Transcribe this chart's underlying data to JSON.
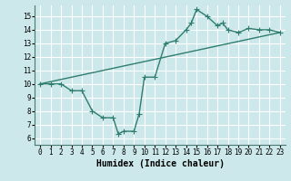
{
  "line1_x": [
    0,
    1,
    2,
    3,
    4,
    5,
    6,
    7,
    7.5,
    8,
    9,
    9.5,
    10,
    11,
    12,
    13,
    14,
    14.5,
    15,
    16,
    17,
    17.5,
    18,
    19,
    20,
    21,
    22,
    23
  ],
  "line1_y": [
    10,
    10,
    10,
    9.5,
    9.5,
    8,
    7.5,
    7.5,
    6.3,
    6.5,
    6.5,
    7.8,
    10.5,
    10.5,
    13,
    13.2,
    14,
    14.5,
    15.5,
    15,
    14.3,
    14.5,
    14,
    13.8,
    14.1,
    14,
    14,
    13.8
  ],
  "line2_x": [
    0,
    23
  ],
  "line2_y": [
    10,
    13.8
  ],
  "color": "#2e7d6e",
  "bg_color": "#cce8ea",
  "grid_color": "#ffffff",
  "xlabel": "Humidex (Indice chaleur)",
  "xlim": [
    -0.5,
    23.5
  ],
  "ylim": [
    5.5,
    15.8
  ],
  "xticks": [
    0,
    1,
    2,
    3,
    4,
    5,
    6,
    7,
    8,
    9,
    10,
    11,
    12,
    13,
    14,
    15,
    16,
    17,
    18,
    19,
    20,
    21,
    22,
    23
  ],
  "yticks": [
    6,
    7,
    8,
    9,
    10,
    11,
    12,
    13,
    14,
    15
  ],
  "marker": "+",
  "markersize": 4,
  "linewidth": 1.0,
  "xlabel_fontsize": 7,
  "tick_fontsize": 5.5
}
